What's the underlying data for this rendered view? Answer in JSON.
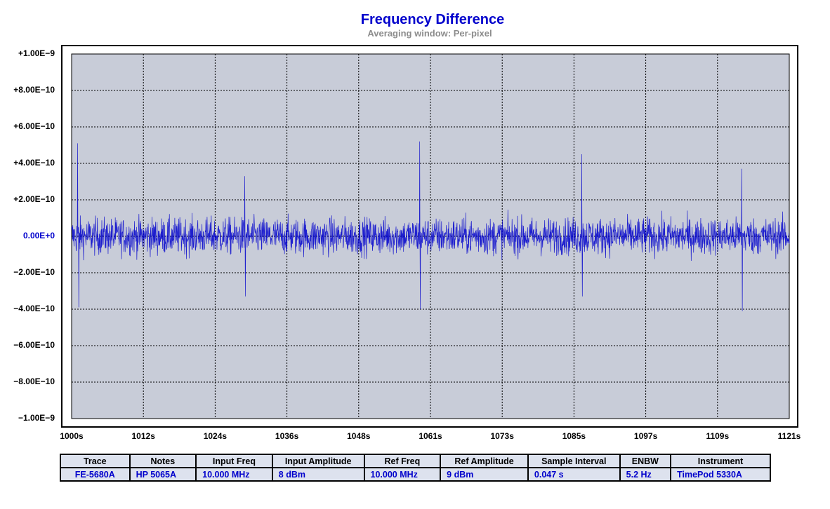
{
  "chart_data": {
    "type": "line",
    "title": "Frequency Difference",
    "subtitle": "Averaging window: Per-pixel",
    "xlabel": "",
    "ylabel": "",
    "xlim": [
      1000,
      1121
    ],
    "ylim": [
      -1e-09,
      1e-09
    ],
    "grid": true,
    "y_ticks": [
      "+1.00E−9",
      "+8.00E−10",
      "+6.00E−10",
      "+4.00E−10",
      "+2.00E−10",
      "0.00E+0",
      "−2.00E−10",
      "−4.00E−10",
      "−6.00E−10",
      "−8.00E−10",
      "−1.00E−9"
    ],
    "x_ticks": [
      "1000s",
      "1012s",
      "1024s",
      "1036s",
      "1048s",
      "1061s",
      "1073s",
      "1085s",
      "1097s",
      "1109s",
      "1121s"
    ],
    "series": [
      {
        "color": "#0000cc",
        "noise_amplitude": 1.3e-10,
        "spikes": [
          {
            "x": 1001.0,
            "y": 5.1e-10
          },
          {
            "x": 1001.2,
            "y": -3.9e-10
          },
          {
            "x": 1029.2,
            "y": 3.3e-10
          },
          {
            "x": 1029.3,
            "y": -3.3e-10
          },
          {
            "x": 1058.7,
            "y": 5.2e-10
          },
          {
            "x": 1058.8,
            "y": -4e-10
          },
          {
            "x": 1086.0,
            "y": 4.5e-10
          },
          {
            "x": 1086.1,
            "y": -3.3e-10
          },
          {
            "x": 1113.0,
            "y": 3.7e-10
          },
          {
            "x": 1113.1,
            "y": -4.1e-10
          }
        ]
      }
    ]
  },
  "colors": {
    "plot_background": "#c8ccd8",
    "trace": "#0000cc",
    "accent_text": "#0000cc"
  },
  "table": {
    "headers": [
      "Trace",
      "Notes",
      "Input Freq",
      "Input Amplitude",
      "Ref Freq",
      "Ref Amplitude",
      "Sample Interval",
      "ENBW",
      "Instrument"
    ],
    "rows": [
      [
        "FE-5680A",
        "HP 5065A",
        "10.000 MHz",
        "8 dBm",
        "10.000 MHz",
        "9 dBm",
        "0.047 s",
        "5.2 Hz",
        "TimePod 5330A"
      ]
    ]
  }
}
